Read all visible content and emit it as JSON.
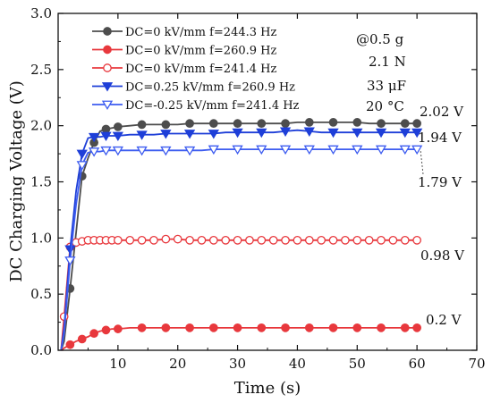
{
  "chart_data": {
    "type": "line",
    "title": "",
    "xlabel": "Time (s)",
    "ylabel": "DC Charging Voltage (V)",
    "xlim": [
      0,
      70
    ],
    "ylim": [
      0.0,
      3.0
    ],
    "xticks": [
      10,
      20,
      30,
      40,
      50,
      60,
      70
    ],
    "xtick_labels": [
      "10",
      "20",
      "30",
      "40",
      "50",
      "60",
      "70"
    ],
    "yticks": [
      0.0,
      0.5,
      1.0,
      1.5,
      2.0,
      2.5,
      3.0
    ],
    "ytick_labels": [
      "0.0",
      "0.5",
      "1.0",
      "1.5",
      "2.0",
      "2.5",
      "3.0"
    ],
    "grid": false,
    "legend_position": "top-left",
    "conditions": [
      "@0.5 g",
      "2.1 N",
      "33 μF",
      "20 °C"
    ],
    "series": [
      {
        "name": "DC=0 kV/mm f=244.3 Hz",
        "color": "#4d4d4d",
        "marker": "circle-filled",
        "marker_every": 2,
        "x": [
          0.5,
          1,
          2,
          3,
          4,
          5,
          6,
          7,
          8,
          9,
          10,
          12,
          14,
          16,
          18,
          20,
          22,
          24,
          26,
          28,
          30,
          32,
          34,
          36,
          38,
          40,
          42,
          44,
          46,
          48,
          50,
          52,
          54,
          56,
          58,
          60
        ],
        "y": [
          0.0,
          0.08,
          0.55,
          1.05,
          1.55,
          1.71,
          1.85,
          1.95,
          1.97,
          1.98,
          1.99,
          2.0,
          2.01,
          2.01,
          2.01,
          2.01,
          2.02,
          2.02,
          2.02,
          2.02,
          2.02,
          2.02,
          2.02,
          2.02,
          2.02,
          2.03,
          2.03,
          2.03,
          2.03,
          2.03,
          2.03,
          2.02,
          2.02,
          2.02,
          2.02,
          2.02
        ]
      },
      {
        "name": "DC=0 kV/mm f=260.9 Hz",
        "color": "#e8383d",
        "marker": "circle-filled",
        "marker_every": 2,
        "x": [
          0.5,
          1,
          2,
          3,
          4,
          5,
          6,
          7,
          8,
          9,
          10,
          12,
          14,
          16,
          18,
          20,
          22,
          24,
          26,
          28,
          30,
          32,
          34,
          36,
          38,
          40,
          42,
          44,
          46,
          48,
          50,
          52,
          54,
          56,
          58,
          60
        ],
        "y": [
          0.0,
          0.02,
          0.05,
          0.08,
          0.1,
          0.12,
          0.15,
          0.17,
          0.18,
          0.19,
          0.19,
          0.2,
          0.2,
          0.2,
          0.2,
          0.2,
          0.2,
          0.2,
          0.2,
          0.2,
          0.2,
          0.2,
          0.2,
          0.2,
          0.2,
          0.2,
          0.2,
          0.2,
          0.2,
          0.2,
          0.2,
          0.2,
          0.2,
          0.2,
          0.2,
          0.2
        ]
      },
      {
        "name": "DC=0 kV/mm f=241.4 Hz",
        "color": "#e8383d",
        "marker": "circle-open",
        "marker_every": 1,
        "x": [
          0.5,
          1,
          2,
          3,
          4,
          5,
          6,
          7,
          8,
          9,
          10,
          12,
          14,
          16,
          18,
          20,
          22,
          24,
          26,
          28,
          30,
          32,
          34,
          36,
          38,
          40,
          42,
          44,
          46,
          48,
          50,
          52,
          54,
          56,
          58,
          60
        ],
        "y": [
          0.0,
          0.3,
          0.92,
          0.96,
          0.97,
          0.98,
          0.98,
          0.98,
          0.98,
          0.98,
          0.98,
          0.98,
          0.98,
          0.98,
          0.99,
          0.99,
          0.98,
          0.98,
          0.98,
          0.98,
          0.98,
          0.98,
          0.98,
          0.98,
          0.98,
          0.98,
          0.98,
          0.98,
          0.98,
          0.98,
          0.98,
          0.98,
          0.98,
          0.98,
          0.98,
          0.98
        ]
      },
      {
        "name": "DC=0.25 kV/mm f=260.9 Hz",
        "color": "#1e3fd8",
        "marker": "triangle-down-filled",
        "marker_every": 2,
        "x": [
          0.5,
          1,
          2,
          3,
          4,
          5,
          6,
          7,
          8,
          9,
          10,
          12,
          14,
          16,
          18,
          20,
          22,
          24,
          26,
          28,
          30,
          32,
          34,
          36,
          38,
          40,
          42,
          44,
          46,
          48,
          50,
          52,
          54,
          56,
          58,
          60
        ],
        "y": [
          0.0,
          0.2,
          0.9,
          1.42,
          1.75,
          1.89,
          1.9,
          1.9,
          1.91,
          1.91,
          1.91,
          1.92,
          1.92,
          1.92,
          1.93,
          1.93,
          1.93,
          1.93,
          1.93,
          1.94,
          1.94,
          1.94,
          1.94,
          1.94,
          1.95,
          1.96,
          1.95,
          1.94,
          1.94,
          1.94,
          1.94,
          1.94,
          1.94,
          1.94,
          1.94,
          1.94
        ]
      },
      {
        "name": "DC=-0.25 kV/mm f=241.4 Hz",
        "color": "#3d5cf0",
        "marker": "triangle-down-open",
        "marker_every": 2,
        "x": [
          0.5,
          1,
          2,
          3,
          4,
          5,
          6,
          7,
          8,
          9,
          10,
          12,
          14,
          16,
          18,
          20,
          22,
          24,
          26,
          28,
          30,
          32,
          34,
          36,
          38,
          40,
          42,
          44,
          46,
          48,
          50,
          52,
          54,
          56,
          58,
          60
        ],
        "y": [
          0.0,
          0.15,
          0.8,
          1.3,
          1.65,
          1.76,
          1.77,
          1.77,
          1.78,
          1.78,
          1.78,
          1.78,
          1.78,
          1.78,
          1.78,
          1.78,
          1.78,
          1.78,
          1.79,
          1.79,
          1.79,
          1.79,
          1.79,
          1.79,
          1.79,
          1.79,
          1.79,
          1.79,
          1.79,
          1.79,
          1.79,
          1.79,
          1.79,
          1.79,
          1.79,
          1.79
        ]
      }
    ],
    "annotations": [
      {
        "text": "2.02 V",
        "x": 60,
        "y": 2.02
      },
      {
        "text": "1.94 V",
        "x": 60,
        "y": 1.94
      },
      {
        "text": "1.79 V",
        "x": 60,
        "y": 1.79
      },
      {
        "text": "0.98 V",
        "x": 60,
        "y": 0.98
      },
      {
        "text": "0.2 V",
        "x": 60,
        "y": 0.2
      }
    ]
  }
}
